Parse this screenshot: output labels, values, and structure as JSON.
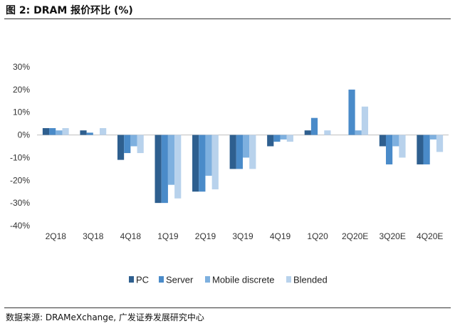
{
  "header": {
    "title": "图 2:  DRAM  报价环比  (%)"
  },
  "source": {
    "text": "数据来源:  DRAMeXchange, 广发证券发展研究中心"
  },
  "chart_data": {
    "type": "bar",
    "title": "DRAM 报价环比 (%)",
    "xlabel": "",
    "ylabel": "",
    "categories": [
      "2Q18",
      "3Q18",
      "4Q18",
      "1Q19",
      "2Q19",
      "3Q19",
      "4Q19",
      "1Q20",
      "2Q20E",
      "3Q20E",
      "4Q20E"
    ],
    "ylim": [
      -40,
      30
    ],
    "yticks": [
      -40,
      -30,
      -20,
      -10,
      0,
      10,
      20,
      30
    ],
    "ytick_labels": [
      "-40%",
      "-30%",
      "-20%",
      "-10%",
      "0%",
      "10%",
      "20%",
      "30%"
    ],
    "grid": false,
    "legend_position": "bottom",
    "series": [
      {
        "name": "PC",
        "color": "#2e5f8f",
        "values": [
          3,
          2,
          -11,
          -30,
          -25,
          -15,
          -5,
          2,
          0,
          -5,
          -13
        ]
      },
      {
        "name": "Server",
        "color": "#4a8bc9",
        "values": [
          3,
          1,
          -8,
          -30,
          -25,
          -15,
          -3,
          7.5,
          20,
          -13,
          -13
        ]
      },
      {
        "name": "Mobile discrete",
        "color": "#7eb0df",
        "values": [
          2,
          0,
          -5,
          -22,
          -18,
          -10,
          -2,
          0,
          2,
          -5,
          -2
        ]
      },
      {
        "name": "Blended",
        "color": "#b8d2ec",
        "values": [
          3,
          3,
          -8,
          -28,
          -24,
          -15,
          -3,
          2,
          12.5,
          -10,
          -7.5
        ]
      }
    ]
  }
}
